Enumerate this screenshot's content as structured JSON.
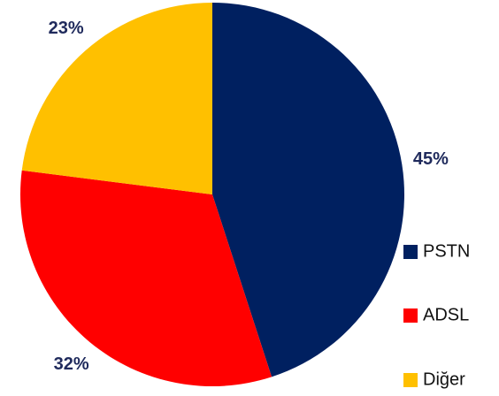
{
  "chart_data": {
    "type": "pie",
    "categories": [
      "PSTN",
      "ADSL",
      "Diğer"
    ],
    "values": [
      45,
      32,
      23
    ],
    "value_labels": [
      "45%",
      "32%",
      "23%"
    ],
    "colors": [
      "#002060",
      "#ff0000",
      "#ffc000"
    ],
    "legend": "right"
  }
}
